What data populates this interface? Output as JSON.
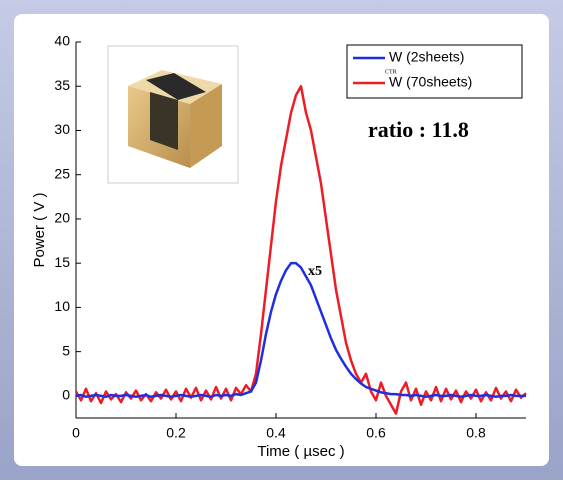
{
  "chart_data": {
    "type": "line",
    "ylabel": "Power ( V )",
    "xlabel": "Time ( µsec )",
    "xlim": [
      0,
      0.9
    ],
    "ylim": [
      -2.5,
      40
    ],
    "xticks": [
      0,
      0.2,
      0.4,
      0.6,
      0.8
    ],
    "yticks": [
      0,
      5,
      10,
      15,
      20,
      25,
      30,
      35,
      40
    ],
    "legend_position": "upper right",
    "legend_subscript": "CTR",
    "annotations": [
      "ratio : 11.8",
      "x5"
    ],
    "x": [
      0,
      0.01,
      0.02,
      0.03,
      0.04,
      0.05,
      0.06,
      0.07,
      0.08,
      0.09,
      0.1,
      0.11,
      0.12,
      0.13,
      0.14,
      0.15,
      0.16,
      0.17,
      0.18,
      0.19,
      0.2,
      0.21,
      0.22,
      0.23,
      0.24,
      0.25,
      0.26,
      0.27,
      0.28,
      0.29,
      0.3,
      0.31,
      0.32,
      0.33,
      0.34,
      0.35,
      0.36,
      0.37,
      0.38,
      0.39,
      0.4,
      0.41,
      0.42,
      0.43,
      0.44,
      0.45,
      0.46,
      0.47,
      0.48,
      0.49,
      0.5,
      0.51,
      0.52,
      0.53,
      0.54,
      0.55,
      0.56,
      0.57,
      0.58,
      0.59,
      0.6,
      0.61,
      0.62,
      0.63,
      0.64,
      0.65,
      0.66,
      0.67,
      0.68,
      0.69,
      0.7,
      0.71,
      0.72,
      0.73,
      0.74,
      0.75,
      0.76,
      0.77,
      0.78,
      0.79,
      0.8,
      0.81,
      0.82,
      0.83,
      0.84,
      0.85,
      0.86,
      0.87,
      0.88,
      0.89,
      0.9
    ],
    "series": [
      {
        "name": "W (2sheets)",
        "color": "#1f2fe0",
        "values": [
          0,
          0.1,
          -0.1,
          0,
          0.1,
          0,
          -0.1,
          0.1,
          0,
          0,
          0.1,
          0,
          -0.1,
          0,
          0.1,
          -0.1,
          0,
          0.1,
          0,
          -0.1,
          0,
          0.1,
          0,
          -0.1,
          0,
          0.1,
          0,
          -0.1,
          0.1,
          0,
          0.1,
          0,
          0.2,
          0.1,
          0.3,
          0.5,
          1.5,
          4,
          7,
          9.5,
          11.5,
          13,
          14.2,
          15,
          15,
          14.5,
          13.5,
          12.5,
          11,
          9.5,
          8,
          6.5,
          5.2,
          4.2,
          3.3,
          2.5,
          1.9,
          1.4,
          1,
          0.8,
          0.6,
          0.4,
          0.3,
          0.2,
          0.2,
          0.1,
          0.1,
          0,
          0.1,
          0,
          -0.1,
          0,
          0.1,
          0,
          0,
          0.1,
          0,
          -0.1,
          0,
          0.1,
          0,
          0,
          0.1,
          0,
          -0.1,
          0,
          0,
          0.1,
          0,
          0,
          0
        ]
      },
      {
        "name": "W (70sheets)",
        "color": "#ee1c24",
        "values": [
          0.5,
          -0.5,
          0.8,
          -0.6,
          0.3,
          -0.8,
          0.5,
          -0.4,
          0.2,
          -0.7,
          0.4,
          -0.3,
          0.6,
          -0.5,
          0.2,
          -0.6,
          0.4,
          -0.3,
          0.7,
          -0.4,
          0.5,
          -0.6,
          0.8,
          -0.2,
          0.9,
          -0.5,
          0.6,
          -0.4,
          1.0,
          -0.3,
          0.8,
          -0.5,
          0.9,
          0.2,
          1.2,
          0.5,
          2.5,
          7,
          12,
          17,
          22,
          26,
          29,
          32,
          34,
          35,
          32,
          30,
          27,
          24,
          20,
          16,
          12,
          9,
          6,
          4,
          2.5,
          1.5,
          2.5,
          0.5,
          -0.5,
          1.5,
          0,
          -1,
          -2,
          0.5,
          1.5,
          -0.5,
          0.8,
          -1,
          0.5,
          -0.5,
          1,
          -0.6,
          0.8,
          -0.4,
          0.6,
          -0.7,
          0.5,
          -0.3,
          0.7,
          -0.6,
          0.4,
          -0.5,
          0.9,
          -0.3,
          0.5,
          -0.6,
          0.7,
          -0.2,
          0.3
        ]
      }
    ]
  }
}
